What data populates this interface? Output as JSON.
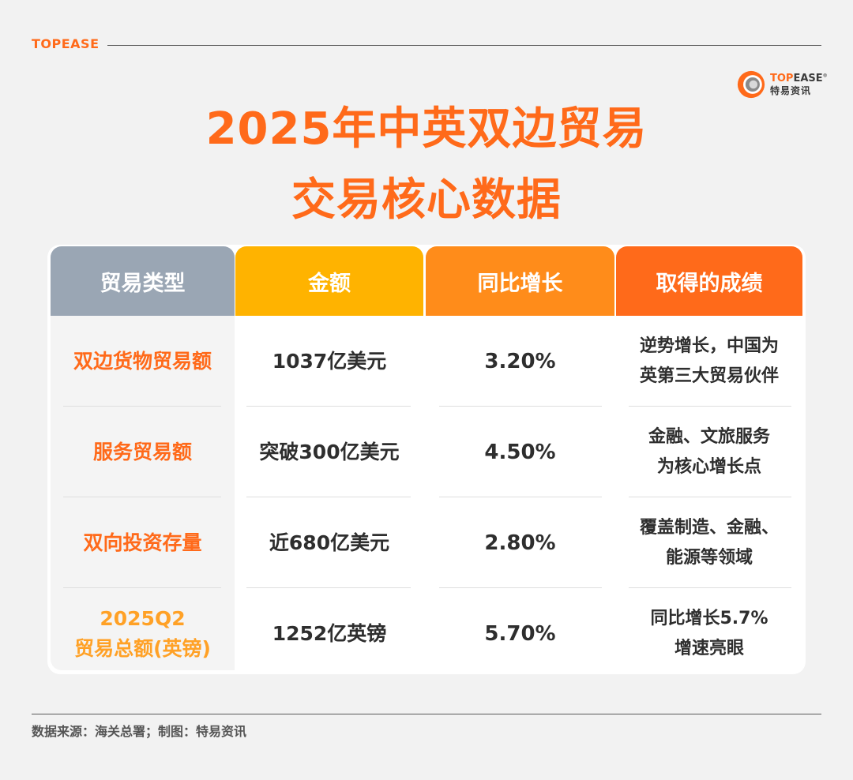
{
  "header": {
    "brand": "TOPEASE"
  },
  "logo": {
    "name_orange": "TOP",
    "name_dark": "EASE",
    "reg": "®",
    "sub": "特易资讯"
  },
  "title": {
    "line1": "2025年中英双边贸易",
    "line2": "交易核心数据"
  },
  "table": {
    "columns": [
      "贸易类型",
      "金额",
      "同比增长",
      "取得的成绩"
    ],
    "rows": [
      {
        "type": [
          "双边货物贸易额"
        ],
        "amount": "1037亿美元",
        "growth": "3.20%",
        "achievement": [
          "逆势增长，中国为",
          "英第三大贸易伙伴"
        ]
      },
      {
        "type": [
          "服务贸易额"
        ],
        "amount": "突破300亿美元",
        "growth": "4.50%",
        "achievement": [
          "金融、文旅服务",
          "为核心增长点"
        ]
      },
      {
        "type": [
          "双向投资存量"
        ],
        "amount": "近680亿美元",
        "growth": "2.80%",
        "achievement": [
          "覆盖制造、金融、",
          "能源等领域"
        ]
      },
      {
        "type": [
          "2025Q2",
          "贸易总额(英镑)"
        ],
        "amount": "1252亿英镑",
        "growth": "5.70%",
        "achievement": [
          "同比增长5.7%",
          "增速亮眼"
        ]
      }
    ]
  },
  "footer": {
    "source": "数据来源：海关总署；制图：特易资讯"
  },
  "colors": {
    "accent": "#ff6a1a",
    "header_type": "#9aa6b4",
    "header_amount": "#ffb300",
    "header_growth": "#ff8c1a",
    "header_achievement": "#ff6a1a"
  }
}
